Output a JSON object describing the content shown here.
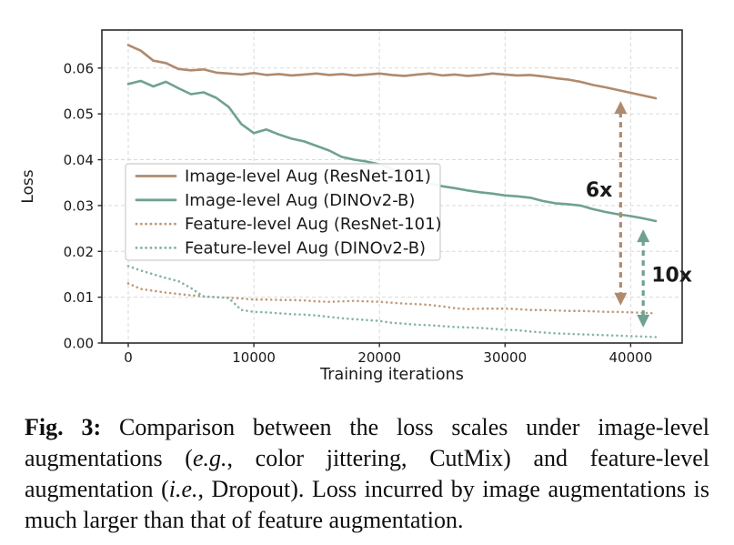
{
  "figure": {
    "caption": {
      "segments": [
        {
          "t": "Fig. 3:",
          "style": "bold"
        },
        {
          "t": " Comparison between the loss scales under image-level augmentations (",
          "style": ""
        },
        {
          "t": "e.g.",
          "style": "italic"
        },
        {
          "t": ", color jittering, CutMix) and feature-level augmentation (",
          "style": ""
        },
        {
          "t": "i.e.",
          "style": "italic"
        },
        {
          "t": ", Dropout). Loss incurred by image augmentations is much larger than that of feature augmentation.",
          "style": ""
        }
      ]
    }
  },
  "chart_data": {
    "type": "line",
    "title": "",
    "xlabel": "Training iterations",
    "ylabel": "Loss",
    "xlim": [
      -2100,
      44100
    ],
    "ylim": [
      0,
      0.0683
    ],
    "xticks": [
      0,
      10000,
      20000,
      30000,
      40000
    ],
    "xtick_labels": [
      "0",
      "10000",
      "20000",
      "30000",
      "40000"
    ],
    "yticks": [
      0,
      0.01,
      0.02,
      0.03,
      0.04,
      0.05,
      0.06
    ],
    "ytick_labels": [
      "0.00",
      "0.01",
      "0.02",
      "0.03",
      "0.04",
      "0.05",
      "0.06"
    ],
    "grid": true,
    "grid_color": "#d9d9d9",
    "spine_color": "#2a2a2a",
    "legend_position": "center-left",
    "x": [
      0,
      1000,
      2000,
      3000,
      4000,
      5000,
      6000,
      7000,
      8000,
      9000,
      10000,
      11000,
      12000,
      13000,
      14000,
      15000,
      16000,
      17000,
      18000,
      19000,
      20000,
      21000,
      22000,
      23000,
      24000,
      25000,
      26000,
      27000,
      28000,
      29000,
      30000,
      31000,
      32000,
      33000,
      34000,
      35000,
      36000,
      37000,
      38000,
      39000,
      40000,
      41000,
      42000
    ],
    "series": [
      {
        "name": "Image-level Aug (ResNet-101)",
        "color": "#b08a6c",
        "dash": "solid",
        "values": [
          0.065,
          0.0638,
          0.0616,
          0.0611,
          0.0598,
          0.0595,
          0.0597,
          0.059,
          0.0588,
          0.0586,
          0.0589,
          0.0585,
          0.0587,
          0.0584,
          0.0586,
          0.0588,
          0.0585,
          0.0587,
          0.0584,
          0.0586,
          0.0588,
          0.0585,
          0.0583,
          0.0586,
          0.0588,
          0.0584,
          0.0586,
          0.0583,
          0.0585,
          0.0588,
          0.0586,
          0.0584,
          0.0585,
          0.0582,
          0.0578,
          0.0575,
          0.057,
          0.0563,
          0.0558,
          0.0552,
          0.0546,
          0.054,
          0.0534
        ]
      },
      {
        "name": "Image-level Aug (DINOv2-B)",
        "color": "#6fa191",
        "dash": "solid",
        "values": [
          0.0565,
          0.0572,
          0.056,
          0.057,
          0.0556,
          0.0543,
          0.0547,
          0.0535,
          0.0515,
          0.0478,
          0.0458,
          0.0466,
          0.0455,
          0.0446,
          0.044,
          0.043,
          0.042,
          0.0406,
          0.04,
          0.0396,
          0.039,
          0.038,
          0.0373,
          0.036,
          0.0348,
          0.0342,
          0.0338,
          0.0333,
          0.0329,
          0.0326,
          0.0322,
          0.032,
          0.0317,
          0.031,
          0.0305,
          0.0303,
          0.03,
          0.0292,
          0.0286,
          0.0281,
          0.0277,
          0.0272,
          0.0266
        ]
      },
      {
        "name": "Feature-level Aug (ResNet-101)",
        "color": "#c19a79",
        "dash": "dotted",
        "values": [
          0.013,
          0.0118,
          0.0114,
          0.011,
          0.0107,
          0.0104,
          0.0102,
          0.01,
          0.0099,
          0.0097,
          0.0095,
          0.0095,
          0.0094,
          0.0094,
          0.0093,
          0.0091,
          0.009,
          0.0091,
          0.0092,
          0.0091,
          0.009,
          0.0088,
          0.0086,
          0.0085,
          0.0083,
          0.008,
          0.0076,
          0.0074,
          0.0075,
          0.0075,
          0.0075,
          0.0074,
          0.0072,
          0.0072,
          0.0071,
          0.007,
          0.007,
          0.0069,
          0.0068,
          0.0068,
          0.0067,
          0.0066,
          0.0065
        ]
      },
      {
        "name": "Feature-level Aug (DINOv2-B)",
        "color": "#85b3a6",
        "dash": "dotted",
        "values": [
          0.0168,
          0.0158,
          0.015,
          0.0142,
          0.0135,
          0.012,
          0.0101,
          0.01,
          0.0098,
          0.0072,
          0.0068,
          0.0067,
          0.0065,
          0.0063,
          0.0062,
          0.006,
          0.0057,
          0.0054,
          0.0052,
          0.005,
          0.0048,
          0.0044,
          0.0042,
          0.004,
          0.0039,
          0.0037,
          0.0035,
          0.0034,
          0.0033,
          0.0031,
          0.0029,
          0.0028,
          0.0025,
          0.0023,
          0.0021,
          0.002,
          0.0019,
          0.0018,
          0.0017,
          0.0016,
          0.0015,
          0.0014,
          0.0013
        ]
      }
    ],
    "annotations": [
      {
        "label": "6x",
        "color": "#b08a6c",
        "x": 39200,
        "y_top": 0.0528,
        "y_bottom": 0.0082,
        "label_y": 0.0336,
        "label_side": "left"
      },
      {
        "label": "10x",
        "color": "#6fa191",
        "x": 41000,
        "y_top": 0.0248,
        "y_bottom": 0.0034,
        "label_y": 0.015,
        "label_side": "right"
      }
    ]
  }
}
